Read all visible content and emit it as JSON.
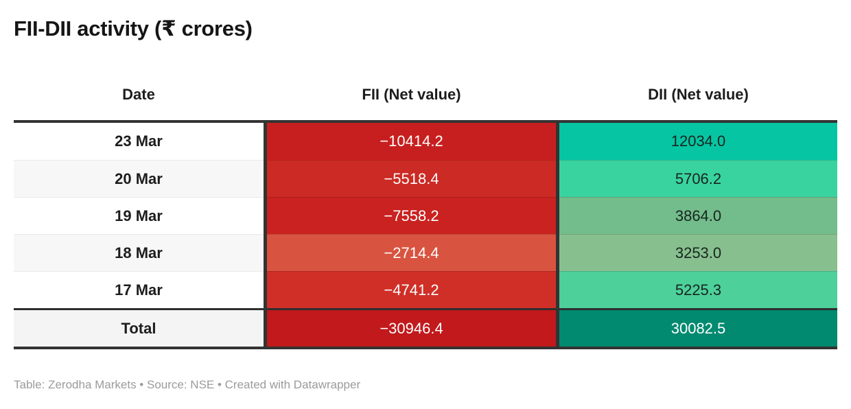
{
  "title": "FII-DII activity (₹ crores)",
  "colors": {
    "frame_border": "#333333",
    "row_separator_light": "#e9e9e9",
    "page_background": "#ffffff",
    "footer_text": "#9b9b9b"
  },
  "chart_data": {
    "type": "table",
    "title": "FII-DII activity (₹ crores)",
    "columns": [
      "Date",
      "FII (Net value)",
      "DII (Net value)"
    ],
    "rows": [
      [
        "23 Mar",
        -10414.2,
        12034.0
      ],
      [
        "20 Mar",
        -5518.4,
        5706.2
      ],
      [
        "19 Mar",
        -7558.2,
        3864.0
      ],
      [
        "18 Mar",
        -2714.4,
        3253.0
      ],
      [
        "17 Mar",
        -4741.2,
        5225.3
      ]
    ],
    "total": [
      "Total",
      -30946.4,
      30082.5
    ],
    "heatmap": "cell background intensity encodes magnitude: red = negative FII flows, green = positive DII flows"
  },
  "table": {
    "columns": [
      {
        "label": "Date"
      },
      {
        "label": "FII (Net value)"
      },
      {
        "label": "DII (Net value)"
      }
    ],
    "rows": [
      {
        "date": "23 Mar",
        "date_bg": "#ffffff",
        "fii": "−10414.2",
        "fii_bg": "#c71f1f",
        "fii_fg": "#ffffff",
        "dii": "12034.0",
        "dii_bg": "#06c5a2",
        "dii_fg": "#17251f"
      },
      {
        "date": "20 Mar",
        "date_bg": "#f7f7f7",
        "fii": "−5518.4",
        "fii_bg": "#cc2a24",
        "fii_fg": "#ffffff",
        "dii": "5706.2",
        "dii_bg": "#39d3a0",
        "dii_fg": "#17251f"
      },
      {
        "date": "19 Mar",
        "date_bg": "#ffffff",
        "fii": "−7558.2",
        "fii_bg": "#c92220",
        "fii_fg": "#ffffff",
        "dii": "3864.0",
        "dii_bg": "#73bc8b",
        "dii_fg": "#17251f"
      },
      {
        "date": "18 Mar",
        "date_bg": "#f7f7f7",
        "fii": "−2714.4",
        "fii_bg": "#d85440",
        "fii_fg": "#ffffff",
        "dii": "3253.0",
        "dii_bg": "#87bf8f",
        "dii_fg": "#17251f"
      },
      {
        "date": "17 Mar",
        "date_bg": "#ffffff",
        "fii": "−4741.2",
        "fii_bg": "#cf2f27",
        "fii_fg": "#ffffff",
        "dii": "5225.3",
        "dii_bg": "#4ed09b",
        "dii_fg": "#17251f"
      }
    ],
    "total_row": {
      "label": "Total",
      "label_bg": "#f4f4f4",
      "fii": "−30946.4",
      "fii_bg": "#c1191c",
      "fii_fg": "#ffffff",
      "dii": "30082.5",
      "dii_bg": "#018a70",
      "dii_fg": "#ffffff"
    }
  },
  "footer": {
    "text": "Table: Zerodha Markets • Source: NSE • Created with Datawrapper"
  }
}
